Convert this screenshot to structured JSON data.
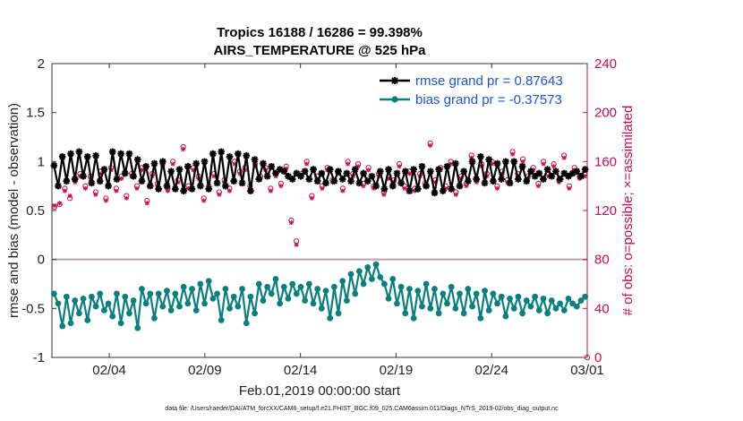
{
  "chart_data": {
    "type": "line",
    "title": [
      "Tropics 16188 / 16286 = 99.398%",
      "AIRS_TEMPERATURE @ 525 hPa"
    ],
    "xlabel": "Feb.01,2019 00:00:00 start",
    "ylabel": "rmse and bias (model - observation)",
    "ylabel_right": "# of obs: o=possible; ×=assimilated",
    "x_ticks": [
      "02/04",
      "02/09",
      "02/14",
      "02/19",
      "02/24",
      "03/01"
    ],
    "x_tick_days": [
      3,
      8,
      13,
      18,
      23,
      28
    ],
    "xlim": [
      0,
      28
    ],
    "ylim": [
      -1,
      2
    ],
    "y_ticks": [
      "-1",
      "-0.5",
      "0",
      "0.5",
      "1",
      "1.5",
      "2"
    ],
    "y_tick_values": [
      -1,
      -0.5,
      0,
      0.5,
      1,
      1.5,
      2
    ],
    "ylim_right": [
      0,
      240
    ],
    "y_ticks_right": [
      "0",
      "40",
      "80",
      "120",
      "160",
      "200",
      "240"
    ],
    "y_tick_values_right": [
      0,
      40,
      80,
      120,
      160,
      200,
      240
    ],
    "grid": false,
    "legend_position": "top-right",
    "colors": {
      "rmse": "#000000",
      "bias": "#0a7f7f",
      "obs": "#cc0a55",
      "zero_line": "#b9a2a8",
      "legend_text": "#1a55d4"
    },
    "series": [
      {
        "name": "rmse grand pr = 0.87643",
        "marker": "asterisk",
        "values": [
          0.96,
          0.75,
          1.05,
          0.8,
          1.08,
          0.82,
          1.1,
          0.85,
          1.05,
          0.78,
          1.06,
          0.8,
          0.92,
          0.75,
          1.1,
          0.82,
          1.08,
          0.88,
          1.08,
          0.85,
          1.02,
          0.8,
          0.95,
          0.75,
          0.98,
          0.72,
          1.0,
          0.75,
          0.9,
          0.72,
          0.92,
          0.7,
          0.95,
          0.72,
          0.98,
          0.75,
          1.0,
          0.72,
          1.08,
          0.78,
          1.1,
          0.75,
          1.05,
          0.8,
          1.08,
          0.78,
          1.06,
          0.7,
          1.02,
          0.82,
          0.98,
          0.85,
          0.95,
          0.88,
          0.92,
          0.9,
          0.85,
          0.82,
          0.88,
          0.85,
          0.9,
          0.82,
          0.92,
          0.8,
          0.88,
          0.78,
          0.92,
          0.8,
          0.9,
          0.82,
          0.88,
          0.8,
          0.92,
          0.78,
          0.88,
          0.8,
          0.85,
          0.75,
          0.9,
          0.72,
          0.92,
          0.75,
          0.88,
          0.78,
          0.9,
          0.7,
          0.92,
          0.72,
          0.95,
          0.75,
          0.9,
          0.68,
          0.92,
          0.7,
          0.95,
          0.72,
          0.98,
          0.75,
          0.9,
          0.8,
          1.0,
          0.82,
          1.05,
          0.78,
          1.02,
          0.8,
          0.98,
          0.82,
          1.0,
          0.78,
          1.0,
          0.82,
          0.95,
          0.8,
          0.9,
          0.85,
          0.88,
          0.82,
          0.92,
          0.85,
          0.9,
          0.82,
          0.88,
          0.85,
          0.88,
          0.9,
          0.85,
          0.92
        ]
      },
      {
        "name": "bias grand pr = -0.37573",
        "marker": "circle",
        "values": [
          -0.35,
          -0.45,
          -0.68,
          -0.38,
          -0.65,
          -0.42,
          -0.55,
          -0.4,
          -0.62,
          -0.38,
          -0.48,
          -0.35,
          -0.52,
          -0.45,
          -0.58,
          -0.35,
          -0.65,
          -0.38,
          -0.55,
          -0.42,
          -0.7,
          -0.3,
          -0.45,
          -0.35,
          -0.6,
          -0.35,
          -0.48,
          -0.32,
          -0.52,
          -0.35,
          -0.48,
          -0.28,
          -0.45,
          -0.3,
          -0.52,
          -0.25,
          -0.45,
          -0.22,
          -0.4,
          -0.35,
          -0.62,
          -0.3,
          -0.5,
          -0.38,
          -0.48,
          -0.3,
          -0.65,
          -0.38,
          -0.55,
          -0.25,
          -0.42,
          -0.28,
          -0.35,
          -0.2,
          -0.45,
          -0.28,
          -0.4,
          -0.25,
          -0.35,
          -0.28,
          -0.42,
          -0.25,
          -0.45,
          -0.3,
          -0.5,
          -0.32,
          -0.6,
          -0.28,
          -0.55,
          -0.22,
          -0.42,
          -0.15,
          -0.35,
          -0.12,
          -0.25,
          -0.08,
          -0.2,
          -0.05,
          -0.18,
          -0.25,
          -0.4,
          -0.2,
          -0.45,
          -0.28,
          -0.55,
          -0.3,
          -0.6,
          -0.32,
          -0.48,
          -0.25,
          -0.5,
          -0.3,
          -0.55,
          -0.35,
          -0.45,
          -0.28,
          -0.5,
          -0.35,
          -0.55,
          -0.3,
          -0.48,
          -0.35,
          -0.6,
          -0.32,
          -0.52,
          -0.35,
          -0.45,
          -0.38,
          -0.58,
          -0.4,
          -0.5,
          -0.38,
          -0.55,
          -0.42,
          -0.48,
          -0.38,
          -0.52,
          -0.4,
          -0.55,
          -0.42,
          -0.5,
          -0.45,
          -0.52,
          -0.4,
          -0.45,
          -0.48,
          -0.42,
          -0.38
        ]
      }
    ],
    "obs_possible": [
      123,
      125,
      138,
      130,
      145,
      150,
      140,
      148,
      135,
      152,
      130,
      155,
      138,
      148,
      132,
      150,
      140,
      155,
      128,
      150,
      142,
      158,
      138,
      160,
      145,
      172,
      140,
      155,
      148,
      130,
      140,
      150,
      135,
      145,
      138,
      160,
      152,
      155,
      140,
      158,
      148,
      155,
      138,
      150,
      142,
      156,
      112,
      95,
      150,
      160,
      132,
      148,
      140,
      155,
      145,
      152,
      138,
      160,
      150,
      158,
      142,
      155,
      140,
      150,
      135,
      148,
      145,
      158,
      140,
      152,
      138,
      150,
      142,
      175,
      145,
      155,
      140,
      160,
      135,
      148,
      142,
      165,
      145,
      158,
      150,
      160,
      140,
      152,
      145,
      168,
      150,
      162,
      148,
      155,
      142,
      160,
      150,
      158,
      145,
      165,
      140,
      155,
      148,
      150
    ],
    "obs_assimilated": [
      124,
      126,
      136,
      132,
      143,
      148,
      138,
      146,
      133,
      150,
      128,
      153,
      136,
      146,
      130,
      148,
      138,
      153,
      126,
      148,
      140,
      156,
      136,
      158,
      143,
      170,
      138,
      153,
      146,
      128,
      138,
      148,
      133,
      143,
      136,
      158,
      150,
      153,
      138,
      156,
      146,
      153,
      136,
      148,
      140,
      154,
      110,
      92,
      148,
      158,
      130,
      146,
      138,
      153,
      143,
      150,
      136,
      158,
      148,
      156,
      140,
      153,
      138,
      148,
      133,
      146,
      143,
      156,
      138,
      150,
      136,
      148,
      140,
      173,
      143,
      153,
      138,
      158,
      133,
      146,
      140,
      163,
      143,
      156,
      148,
      158,
      138,
      150,
      143,
      166,
      148,
      160,
      146,
      153,
      140,
      158,
      148,
      156,
      143,
      163,
      138,
      153,
      146,
      148
    ]
  },
  "footer": "data file: /Users/raeder/DAI/ATM_forcXX/CAM6_setup/f.e21.FHIST_BGC.f09_025.CAM6assim.011/Diags_NTrS_2019-02/obs_diag_output.nc"
}
